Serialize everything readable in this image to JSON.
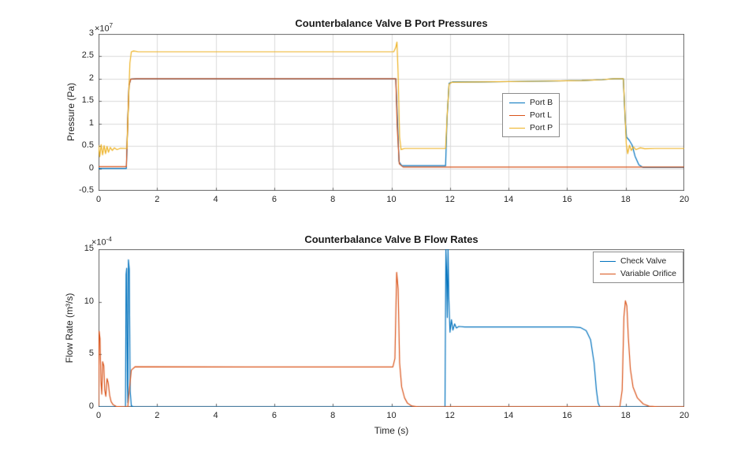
{
  "colors": {
    "blue": "#0072BD",
    "orange": "#D95319",
    "yellow": "#EDB120",
    "axis": "#666666",
    "grid": "#dbdbdb",
    "tick_text": "#262626"
  },
  "chart_data": [
    {
      "type": "line",
      "title": "Counterbalance Valve B Port Pressures",
      "xlabel": "",
      "ylabel": "Pressure (Pa)",
      "y_mult_base": "×10",
      "y_mult_exp": "7",
      "xlim": [
        0,
        20
      ],
      "ylim": [
        -0.5,
        3
      ],
      "xticks": [
        0,
        2,
        4,
        6,
        8,
        10,
        12,
        14,
        16,
        18,
        20
      ],
      "xtick_labels": [
        "0",
        "2",
        "4",
        "6",
        "8",
        "10",
        "12",
        "14",
        "16",
        "18",
        "20"
      ],
      "yticks": [
        -0.5,
        0,
        0.5,
        1,
        1.5,
        2,
        2.5,
        3
      ],
      "ytick_labels": [
        "-0.5",
        "0",
        "0.5",
        "1",
        "1.5",
        "2",
        "2.5",
        "3"
      ],
      "grid": true,
      "legend_position": "inside-middle-right",
      "series": [
        {
          "name": "Port B",
          "color": "#0072BD",
          "points": [
            [
              0,
              0
            ],
            [
              0.95,
              0
            ],
            [
              1.0,
              1.1
            ],
            [
              1.04,
              1.85
            ],
            [
              1.1,
              1.99
            ],
            [
              1.3,
              2.0
            ],
            [
              10.15,
              2.0
            ],
            [
              10.2,
              1.2
            ],
            [
              10.26,
              0.15
            ],
            [
              10.35,
              0.06
            ],
            [
              11.85,
              0.06
            ],
            [
              11.9,
              1.1
            ],
            [
              11.97,
              1.9
            ],
            [
              12.1,
              1.93
            ],
            [
              13,
              1.93
            ],
            [
              15,
              1.945
            ],
            [
              16.5,
              1.96
            ],
            [
              17.2,
              1.98
            ],
            [
              17.6,
              2.0
            ],
            [
              17.92,
              2.0
            ],
            [
              17.98,
              1.1
            ],
            [
              18.03,
              0.7
            ],
            [
              18.12,
              0.63
            ],
            [
              18.22,
              0.52
            ],
            [
              18.32,
              0.27
            ],
            [
              18.45,
              0.08
            ],
            [
              18.6,
              0.02
            ],
            [
              20,
              0.02
            ]
          ]
        },
        {
          "name": "Port L",
          "color": "#D95319",
          "points": [
            [
              0,
              0.04
            ],
            [
              0.95,
              0.04
            ],
            [
              1.0,
              1.1
            ],
            [
              1.04,
              1.85
            ],
            [
              1.1,
              1.99
            ],
            [
              1.3,
              2.0
            ],
            [
              10.15,
              2.0
            ],
            [
              10.2,
              0.9
            ],
            [
              10.27,
              0.1
            ],
            [
              10.4,
              0.03
            ],
            [
              20,
              0.03
            ]
          ]
        },
        {
          "name": "Port P",
          "color": "#EDB120",
          "points": [
            [
              0,
              0.52
            ],
            [
              0.04,
              0.26
            ],
            [
              0.09,
              0.53
            ],
            [
              0.14,
              0.3
            ],
            [
              0.19,
              0.51
            ],
            [
              0.24,
              0.33
            ],
            [
              0.29,
              0.49
            ],
            [
              0.34,
              0.36
            ],
            [
              0.4,
              0.47
            ],
            [
              0.47,
              0.4
            ],
            [
              0.54,
              0.46
            ],
            [
              0.63,
              0.42
            ],
            [
              0.75,
              0.45
            ],
            [
              0.97,
              0.445
            ],
            [
              1.02,
              1.4
            ],
            [
              1.07,
              2.35
            ],
            [
              1.12,
              2.6
            ],
            [
              1.2,
              2.62
            ],
            [
              1.35,
              2.6
            ],
            [
              10.08,
              2.6
            ],
            [
              10.15,
              2.7
            ],
            [
              10.19,
              2.82
            ],
            [
              10.23,
              2.1
            ],
            [
              10.28,
              0.7
            ],
            [
              10.33,
              0.42
            ],
            [
              10.45,
              0.445
            ],
            [
              11.85,
              0.445
            ],
            [
              11.91,
              1.25
            ],
            [
              11.97,
              1.88
            ],
            [
              12.05,
              1.92
            ],
            [
              13,
              1.93
            ],
            [
              15,
              1.945
            ],
            [
              16.5,
              1.96
            ],
            [
              17.2,
              1.98
            ],
            [
              17.6,
              2.0
            ],
            [
              17.92,
              2.0
            ],
            [
              17.97,
              1.3
            ],
            [
              18.02,
              0.55
            ],
            [
              18.07,
              0.33
            ],
            [
              18.13,
              0.52
            ],
            [
              18.19,
              0.4
            ],
            [
              18.26,
              0.48
            ],
            [
              18.35,
              0.42
            ],
            [
              18.5,
              0.46
            ],
            [
              18.65,
              0.44
            ],
            [
              19,
              0.445
            ],
            [
              20,
              0.445
            ]
          ]
        }
      ]
    },
    {
      "type": "line",
      "title": "Counterbalance Valve B Flow Rates",
      "xlabel": "Time (s)",
      "ylabel": "Flow Rate  (m³/s)",
      "y_mult_base": "×10",
      "y_mult_exp": "-4",
      "xlim": [
        0,
        20
      ],
      "ylim": [
        0,
        15
      ],
      "xticks": [
        0,
        2,
        4,
        6,
        8,
        10,
        12,
        14,
        16,
        18,
        20
      ],
      "xtick_labels": [
        "0",
        "2",
        "4",
        "6",
        "8",
        "10",
        "12",
        "14",
        "16",
        "18",
        "20"
      ],
      "yticks": [
        0,
        5,
        10,
        15
      ],
      "ytick_labels": [
        "0",
        "5",
        "10",
        "15"
      ],
      "grid": false,
      "legend_position": "inside-top-right",
      "series": [
        {
          "name": "Check Valve",
          "color": "#0072BD",
          "points": [
            [
              0,
              0
            ],
            [
              0.92,
              0
            ],
            [
              0.94,
              12.6
            ],
            [
              0.96,
              13.2
            ],
            [
              0.985,
              2.0
            ],
            [
              1.0,
              0.4
            ],
            [
              1.02,
              14.0
            ],
            [
              1.05,
              13.1
            ],
            [
              1.08,
              1.5
            ],
            [
              1.12,
              0.1
            ],
            [
              1.2,
              0
            ],
            [
              11.83,
              0
            ],
            [
              11.86,
              15.0
            ],
            [
              11.885,
              13.0
            ],
            [
              11.91,
              8.5
            ],
            [
              11.935,
              15.0
            ],
            [
              11.96,
              10.5
            ],
            [
              12.0,
              7.1
            ],
            [
              12.05,
              8.3
            ],
            [
              12.1,
              7.3
            ],
            [
              12.16,
              7.9
            ],
            [
              12.22,
              7.5
            ],
            [
              12.3,
              7.65
            ],
            [
              12.5,
              7.6
            ],
            [
              16.2,
              7.6
            ],
            [
              16.45,
              7.55
            ],
            [
              16.65,
              7.25
            ],
            [
              16.8,
              6.4
            ],
            [
              16.92,
              4.2
            ],
            [
              17.0,
              1.6
            ],
            [
              17.06,
              0.35
            ],
            [
              17.12,
              0
            ],
            [
              20,
              0
            ]
          ]
        },
        {
          "name": "Variable Orifice",
          "color": "#D95319",
          "points": [
            [
              0,
              0.1
            ],
            [
              0.02,
              7.2
            ],
            [
              0.05,
              6.5
            ],
            [
              0.08,
              2.5
            ],
            [
              0.11,
              1.2
            ],
            [
              0.14,
              4.3
            ],
            [
              0.18,
              3.9
            ],
            [
              0.21,
              1.6
            ],
            [
              0.25,
              1.0
            ],
            [
              0.29,
              2.7
            ],
            [
              0.33,
              2.3
            ],
            [
              0.38,
              1.1
            ],
            [
              0.43,
              0.5
            ],
            [
              0.5,
              0.2
            ],
            [
              0.6,
              0.05
            ],
            [
              0.8,
              0.02
            ],
            [
              1.0,
              0.02
            ],
            [
              1.05,
              1.6
            ],
            [
              1.12,
              3.5
            ],
            [
              1.25,
              3.82
            ],
            [
              5,
              3.8
            ],
            [
              10.05,
              3.8
            ],
            [
              10.12,
              4.6
            ],
            [
              10.18,
              12.8
            ],
            [
              10.23,
              11.2
            ],
            [
              10.28,
              4.2
            ],
            [
              10.35,
              1.9
            ],
            [
              10.45,
              0.85
            ],
            [
              10.55,
              0.35
            ],
            [
              10.7,
              0.08
            ],
            [
              10.9,
              0.02
            ],
            [
              17.8,
              0.02
            ],
            [
              17.88,
              1.6
            ],
            [
              17.94,
              8.6
            ],
            [
              17.99,
              10.1
            ],
            [
              18.04,
              9.6
            ],
            [
              18.09,
              6.6
            ],
            [
              18.16,
              3.6
            ],
            [
              18.25,
              1.9
            ],
            [
              18.4,
              0.85
            ],
            [
              18.6,
              0.28
            ],
            [
              18.8,
              0.07
            ],
            [
              19.1,
              0.02
            ],
            [
              20,
              0.02
            ]
          ]
        }
      ]
    }
  ]
}
